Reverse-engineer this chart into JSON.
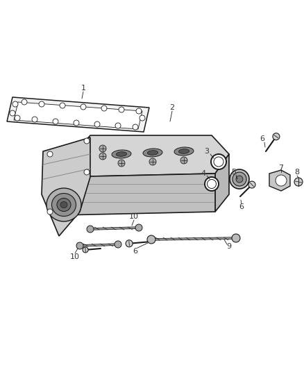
{
  "bg_color": "#ffffff",
  "line_color": "#1a1a1a",
  "label_color": "#333333",
  "figsize": [
    4.38,
    5.33
  ],
  "dpi": 100
}
